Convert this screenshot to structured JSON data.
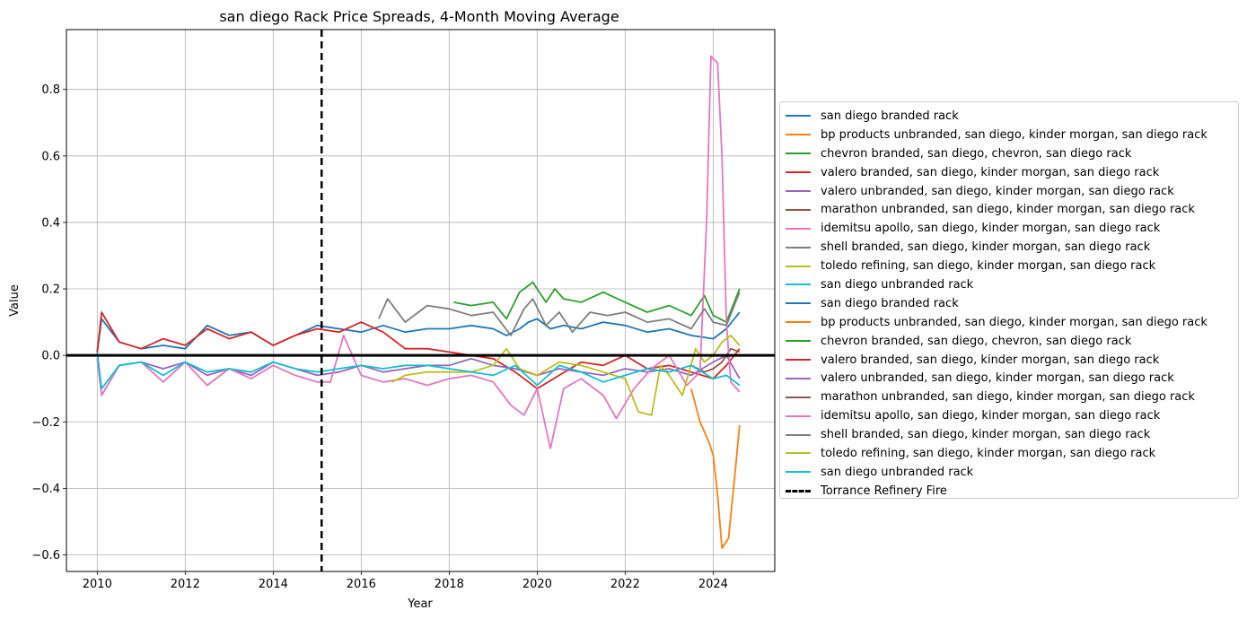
{
  "chart_data": {
    "type": "line",
    "title": "san diego Rack Price Spreads, 4-Month Moving Average",
    "xlabel": "Year",
    "ylabel": "Value",
    "xlim": [
      2009.3,
      2025.4
    ],
    "ylim": [
      -0.65,
      0.98
    ],
    "x_ticks": [
      "2010",
      "2012",
      "2014",
      "2016",
      "2018",
      "2020",
      "2022",
      "2024"
    ],
    "y_ticks": [
      "−0.6",
      "−0.4",
      "−0.2",
      "0.0",
      "0.2",
      "0.4",
      "0.6",
      "0.8"
    ],
    "x_tick_values": [
      2010,
      2012,
      2014,
      2016,
      2018,
      2020,
      2022,
      2024
    ],
    "y_tick_values": [
      -0.6,
      -0.4,
      -0.2,
      0.0,
      0.2,
      0.4,
      0.6,
      0.8
    ],
    "grid": true,
    "legend_position": "center-right-outside",
    "hline": {
      "y": 0.0,
      "color": "#000000"
    },
    "vline": {
      "x": 2015.1,
      "label": "Torrance Refinery Fire",
      "style": "dashed",
      "color": "#000000"
    },
    "series": [
      {
        "name": "san diego branded rack",
        "color": "#1f77b4",
        "x": [
          2010.0,
          2010.1,
          2010.5,
          2011.0,
          2011.5,
          2012.0,
          2012.5,
          2013.0,
          2013.5,
          2014.0,
          2014.5,
          2015.0,
          2015.5,
          2016.0,
          2016.5,
          2017.0,
          2017.5,
          2018.0,
          2018.5,
          2019.0,
          2019.3,
          2019.6,
          2019.8,
          2020.0,
          2020.3,
          2020.6,
          2021.0,
          2021.5,
          2022.0,
          2022.5,
          2023.0,
          2023.5,
          2024.0,
          2024.3,
          2024.6
        ],
        "y": [
          0.01,
          0.11,
          0.04,
          0.02,
          0.03,
          0.02,
          0.09,
          0.06,
          0.07,
          0.03,
          0.06,
          0.09,
          0.08,
          0.07,
          0.09,
          0.07,
          0.08,
          0.08,
          0.09,
          0.08,
          0.06,
          0.08,
          0.1,
          0.11,
          0.08,
          0.09,
          0.08,
          0.1,
          0.09,
          0.07,
          0.08,
          0.06,
          0.05,
          0.08,
          0.13
        ]
      },
      {
        "name": "bp products unbranded, san diego, kinder morgan, san diego rack",
        "color": "#ff7f0e",
        "x": [
          2023.5,
          2023.7,
          2023.9,
          2024.0,
          2024.1,
          2024.2,
          2024.35,
          2024.5,
          2024.6
        ],
        "y": [
          -0.1,
          -0.2,
          -0.26,
          -0.3,
          -0.42,
          -0.58,
          -0.55,
          -0.35,
          -0.21
        ]
      },
      {
        "name": "chevron branded, san diego, chevron, san diego rack",
        "color": "#2ca02c",
        "x": [
          2018.1,
          2018.5,
          2019.0,
          2019.3,
          2019.6,
          2019.9,
          2020.2,
          2020.4,
          2020.6,
          2021.0,
          2021.5,
          2022.0,
          2022.5,
          2023.0,
          2023.5,
          2023.8,
          2024.0,
          2024.3,
          2024.6
        ],
        "y": [
          0.16,
          0.15,
          0.16,
          0.11,
          0.19,
          0.22,
          0.16,
          0.2,
          0.17,
          0.16,
          0.19,
          0.16,
          0.13,
          0.15,
          0.12,
          0.18,
          0.12,
          0.1,
          0.2
        ]
      },
      {
        "name": "valero branded, san diego, kinder morgan, san diego rack",
        "color": "#d62728",
        "x": [
          2010.0,
          2010.1,
          2010.5,
          2011.0,
          2011.5,
          2012.0,
          2012.5,
          2013.0,
          2013.5,
          2014.0,
          2014.5,
          2015.0,
          2015.5,
          2016.0,
          2016.5,
          2017.0,
          2017.5,
          2018.0,
          2018.5,
          2019.0,
          2019.5,
          2020.0,
          2020.5,
          2021.0,
          2021.5,
          2022.0,
          2022.5,
          2023.0,
          2023.5,
          2024.0,
          2024.3,
          2024.6
        ],
        "y": [
          0.01,
          0.13,
          0.04,
          0.02,
          0.05,
          0.03,
          0.08,
          0.05,
          0.07,
          0.03,
          0.06,
          0.08,
          0.07,
          0.1,
          0.07,
          0.02,
          0.02,
          0.01,
          0.0,
          -0.01,
          -0.05,
          -0.1,
          -0.06,
          -0.02,
          -0.03,
          0.0,
          -0.04,
          -0.03,
          -0.05,
          -0.07,
          -0.03,
          0.02
        ]
      },
      {
        "name": "valero unbranded, san diego, kinder morgan, san diego rack",
        "color": "#9467bd",
        "x": [
          2010.0,
          2010.1,
          2010.5,
          2011.0,
          2011.5,
          2012.0,
          2012.5,
          2013.0,
          2013.5,
          2014.0,
          2014.5,
          2015.0,
          2015.5,
          2016.0,
          2016.5,
          2017.0,
          2017.5,
          2018.0,
          2018.5,
          2019.0,
          2019.5,
          2020.0,
          2020.5,
          2021.0,
          2021.5,
          2022.0,
          2022.5,
          2023.0,
          2023.5,
          2024.0,
          2024.3,
          2024.6
        ],
        "y": [
          -0.01,
          -0.12,
          -0.03,
          -0.02,
          -0.04,
          -0.02,
          -0.06,
          -0.04,
          -0.06,
          -0.02,
          -0.04,
          -0.06,
          -0.05,
          -0.03,
          -0.05,
          -0.04,
          -0.03,
          -0.03,
          -0.01,
          -0.03,
          -0.04,
          -0.06,
          -0.04,
          -0.05,
          -0.06,
          -0.04,
          -0.05,
          -0.04,
          -0.06,
          -0.02,
          0.0,
          -0.07
        ]
      },
      {
        "name": "marathon unbranded, san diego, kinder morgan, san diego rack",
        "color": "#8c564b",
        "x": [
          2023.5,
          2023.8,
          2024.0,
          2024.2,
          2024.4,
          2024.6
        ],
        "y": [
          -0.03,
          -0.05,
          -0.04,
          -0.02,
          0.02,
          0.01
        ]
      },
      {
        "name": "idemitsu apollo, san diego, kinder morgan, san diego rack",
        "color": "#e377c2",
        "x": [
          2010.0,
          2010.1,
          2010.5,
          2011.0,
          2011.5,
          2012.0,
          2012.5,
          2013.0,
          2013.5,
          2014.0,
          2014.5,
          2015.0,
          2015.3,
          2015.6,
          2016.0,
          2016.5,
          2017.0,
          2017.5,
          2018.0,
          2018.5,
          2019.0,
          2019.4,
          2019.7,
          2020.0,
          2020.3,
          2020.6,
          2021.0,
          2021.5,
          2021.8,
          2022.2,
          2022.6,
          2023.0,
          2023.4,
          2023.7,
          2023.85,
          2023.95,
          2024.1,
          2024.2,
          2024.3,
          2024.4,
          2024.6
        ],
        "y": [
          -0.01,
          -0.12,
          -0.03,
          -0.02,
          -0.08,
          -0.02,
          -0.09,
          -0.04,
          -0.07,
          -0.03,
          -0.06,
          -0.08,
          -0.08,
          0.06,
          -0.06,
          -0.08,
          -0.07,
          -0.09,
          -0.07,
          -0.06,
          -0.08,
          -0.15,
          -0.18,
          -0.1,
          -0.28,
          -0.1,
          -0.07,
          -0.12,
          -0.19,
          -0.1,
          -0.04,
          0.0,
          -0.09,
          -0.05,
          0.4,
          0.9,
          0.88,
          0.6,
          0.1,
          -0.08,
          -0.11
        ]
      },
      {
        "name": "shell branded, san diego, kinder morgan, san diego rack",
        "color": "#7f7f7f",
        "x": [
          2016.4,
          2016.6,
          2017.0,
          2017.5,
          2018.0,
          2018.5,
          2019.0,
          2019.4,
          2019.7,
          2019.9,
          2020.2,
          2020.5,
          2020.8,
          2021.2,
          2021.6,
          2022.0,
          2022.5,
          2023.0,
          2023.5,
          2023.8,
          2024.0,
          2024.3,
          2024.6
        ],
        "y": [
          0.11,
          0.17,
          0.1,
          0.15,
          0.14,
          0.12,
          0.13,
          0.06,
          0.14,
          0.17,
          0.09,
          0.13,
          0.07,
          0.13,
          0.12,
          0.13,
          0.1,
          0.11,
          0.08,
          0.14,
          0.1,
          0.09,
          0.19
        ]
      },
      {
        "name": "toledo refining, san diego, kinder morgan, san diego rack",
        "color": "#bcbd22",
        "x": [
          2016.7,
          2017.0,
          2017.5,
          2018.0,
          2018.5,
          2019.0,
          2019.3,
          2019.6,
          2020.0,
          2020.5,
          2021.0,
          2021.5,
          2022.0,
          2022.3,
          2022.6,
          2022.8,
          2023.0,
          2023.3,
          2023.6,
          2023.8,
          2024.0,
          2024.2,
          2024.4,
          2024.6
        ],
        "y": [
          -0.08,
          -0.06,
          -0.05,
          -0.05,
          -0.05,
          -0.03,
          0.02,
          -0.04,
          -0.06,
          -0.02,
          -0.03,
          -0.05,
          -0.07,
          -0.17,
          -0.18,
          -0.03,
          -0.06,
          -0.12,
          0.02,
          -0.02,
          0.0,
          0.04,
          0.06,
          0.03
        ]
      },
      {
        "name": "san diego unbranded rack",
        "color": "#17becf",
        "x": [
          2010.0,
          2010.1,
          2010.5,
          2011.0,
          2011.5,
          2012.0,
          2012.5,
          2013.0,
          2013.5,
          2014.0,
          2014.5,
          2015.0,
          2015.5,
          2016.0,
          2016.5,
          2017.0,
          2017.5,
          2018.0,
          2018.5,
          2019.0,
          2019.5,
          2020.0,
          2020.5,
          2021.0,
          2021.5,
          2022.0,
          2022.5,
          2023.0,
          2023.5,
          2024.0,
          2024.3,
          2024.6
        ],
        "y": [
          0.01,
          -0.1,
          -0.03,
          -0.02,
          -0.06,
          -0.02,
          -0.05,
          -0.04,
          -0.05,
          -0.02,
          -0.04,
          -0.05,
          -0.04,
          -0.03,
          -0.04,
          -0.03,
          -0.03,
          -0.04,
          -0.05,
          -0.06,
          -0.03,
          -0.09,
          -0.03,
          -0.05,
          -0.08,
          -0.06,
          -0.04,
          -0.05,
          -0.03,
          -0.07,
          -0.06,
          -0.09
        ]
      }
    ],
    "legend_entries": [
      {
        "label": "san diego branded rack",
        "color": "#1f77b4"
      },
      {
        "label": "bp products unbranded, san diego, kinder morgan, san diego rack",
        "color": "#ff7f0e"
      },
      {
        "label": "chevron branded, san diego, chevron, san diego rack",
        "color": "#2ca02c"
      },
      {
        "label": "valero branded, san diego, kinder morgan, san diego rack",
        "color": "#d62728"
      },
      {
        "label": "valero unbranded, san diego, kinder morgan, san diego rack",
        "color": "#9467bd"
      },
      {
        "label": "marathon unbranded, san diego, kinder morgan, san diego rack",
        "color": "#8c564b"
      },
      {
        "label": "idemitsu apollo, san diego, kinder morgan, san diego rack",
        "color": "#e377c2"
      },
      {
        "label": "shell branded, san diego, kinder morgan, san diego rack",
        "color": "#7f7f7f"
      },
      {
        "label": "toledo refining, san diego, kinder morgan, san diego rack",
        "color": "#bcbd22"
      },
      {
        "label": "san diego unbranded rack",
        "color": "#17becf"
      },
      {
        "label": "san diego branded rack",
        "color": "#1f77b4"
      },
      {
        "label": "bp products unbranded, san diego, kinder morgan, san diego rack",
        "color": "#ff7f0e"
      },
      {
        "label": "chevron branded, san diego, chevron, san diego rack",
        "color": "#2ca02c"
      },
      {
        "label": "valero branded, san diego, kinder morgan, san diego rack",
        "color": "#d62728"
      },
      {
        "label": "valero unbranded, san diego, kinder morgan, san diego rack",
        "color": "#9467bd"
      },
      {
        "label": "marathon unbranded, san diego, kinder morgan, san diego rack",
        "color": "#8c564b"
      },
      {
        "label": "idemitsu apollo, san diego, kinder morgan, san diego rack",
        "color": "#e377c2"
      },
      {
        "label": "shell branded, san diego, kinder morgan, san diego rack",
        "color": "#7f7f7f"
      },
      {
        "label": "toledo refining, san diego, kinder morgan, san diego rack",
        "color": "#bcbd22"
      },
      {
        "label": "san diego unbranded rack",
        "color": "#17becf"
      },
      {
        "label": "Torrance Refinery Fire",
        "color": "#000000",
        "dashed": true
      }
    ]
  }
}
